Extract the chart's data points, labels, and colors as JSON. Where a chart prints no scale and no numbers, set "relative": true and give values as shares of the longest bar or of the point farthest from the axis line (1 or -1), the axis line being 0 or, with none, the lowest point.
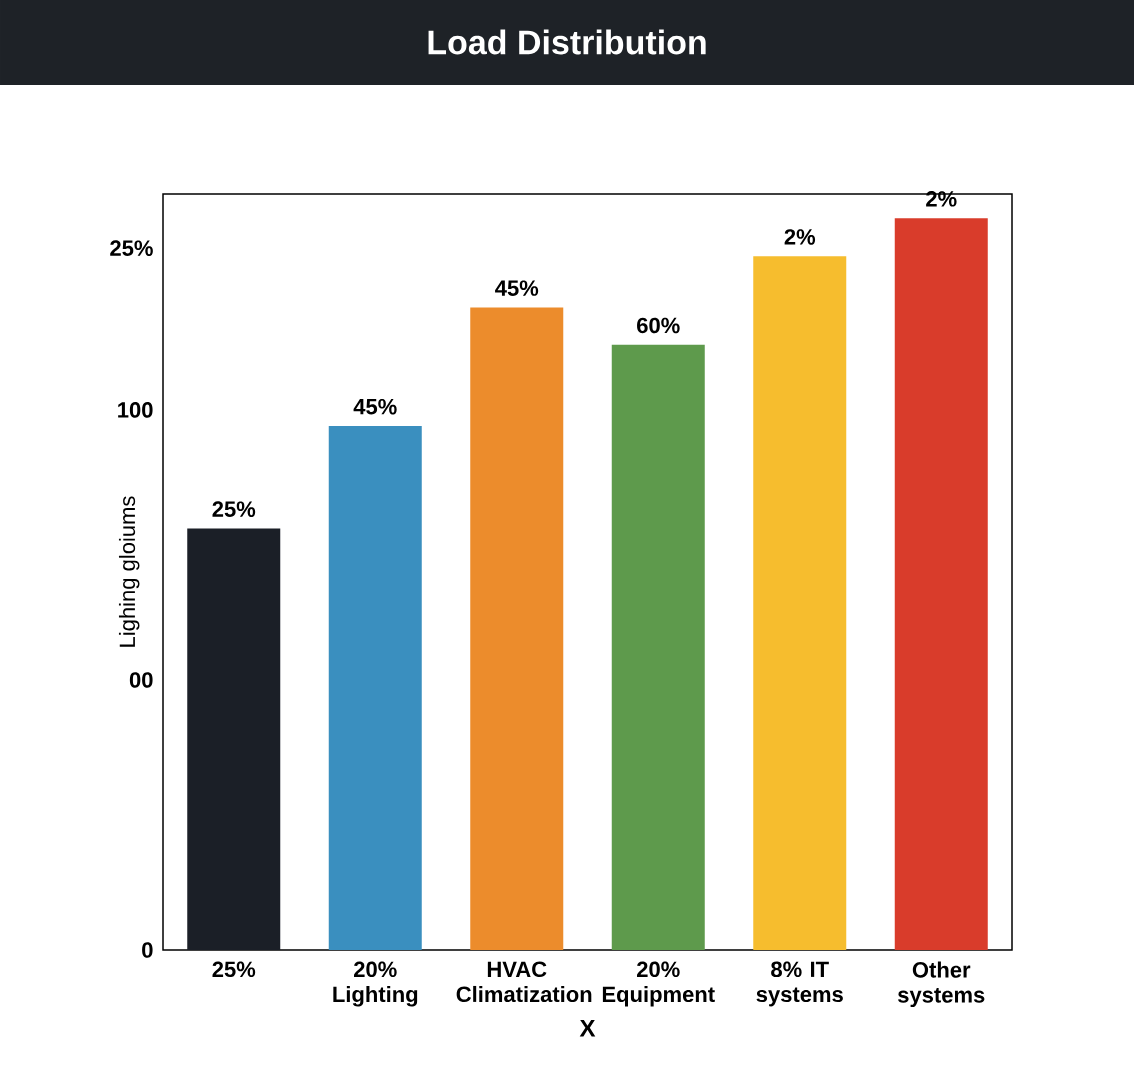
{
  "chart_data": {
    "type": "bar",
    "title": "Load Distribution",
    "xlabel": "X",
    "ylabel": "Lighing gloiums",
    "categories": [
      "25%",
      "20% Lighting",
      "HVAC Climatization",
      "20% Equipment",
      "8% IT systems",
      "Other systems"
    ],
    "values": [
      0.576,
      0.716,
      0.878,
      0.827,
      0.948,
      1
    ],
    "colors": [
      "#1b1f27",
      "#3a8fbf",
      "#ec8c2c",
      "#5e9a4c",
      "#f6bd2e",
      "#d93c2b"
    ],
    "relative": true,
    "annotations": [
      "25%",
      "100",
      "00",
      "0",
      "25%",
      "45%",
      "45%",
      "60%",
      "2%",
      "2%"
    ]
  }
}
